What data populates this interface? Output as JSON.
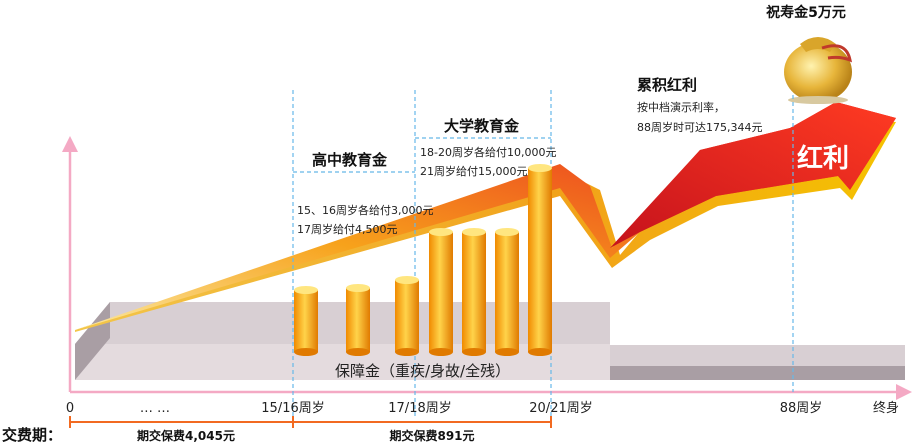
{
  "title_bag": "祝寿金5万元",
  "bonus": {
    "heading": "累积红利",
    "line1": "按中档演示利率，",
    "line2": "88周岁时可达175,344元",
    "arrow_label": "红利"
  },
  "highschool": {
    "heading": "高中教育金",
    "line1": "15、16周岁各给付3,000元",
    "line2": "17周岁给付4,500元"
  },
  "university": {
    "heading": "大学教育金",
    "line1": "18-20周岁各给付10,000元",
    "line2": "21周岁给付15,000元"
  },
  "base_label": "保障金（重疾/身故/全残）",
  "axis": {
    "labels": [
      "0",
      "… …",
      "15/16周岁",
      "17/18周岁",
      "20/21周岁",
      "88周岁",
      "终身"
    ]
  },
  "payment": {
    "label": "交费期：",
    "period1": "期交保费4,045元",
    "period2": "期交保费891元"
  },
  "colors": {
    "axis": "#f4a9c4",
    "dash": "#66b8e8",
    "base_platform": "#d8cfd3",
    "base_side": "#a99ea4",
    "payment_line": "#f26a21",
    "cylinder": "#f5a800",
    "arrow_red": "#e5141a"
  }
}
